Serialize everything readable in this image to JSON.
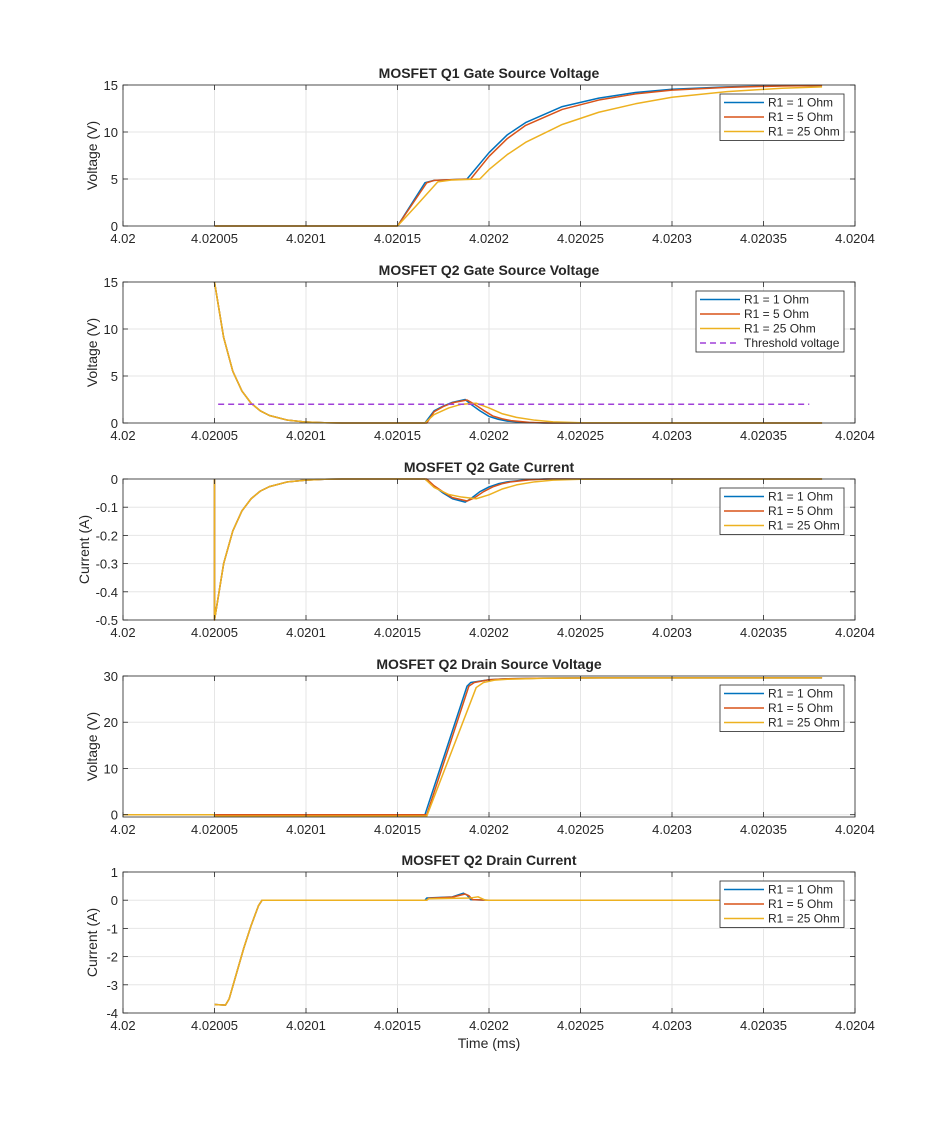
{
  "chart_data": [
    {
      "type": "line",
      "title": "MOSFET Q1 Gate Source Voltage",
      "xlabel": "",
      "ylabel": "Voltage (V)",
      "xlim": [
        4.02,
        4.0204
      ],
      "ylim": [
        0,
        15
      ],
      "xticks": [
        4.02,
        4.02005,
        4.0201,
        4.02015,
        4.0202,
        4.02025,
        4.0203,
        4.02035,
        4.0204
      ],
      "xtick_labels": [
        "4.02",
        "4.02005",
        "4.0201",
        "4.02015",
        "4.0202",
        "4.02025",
        "4.0203",
        "4.02035",
        "4.0204"
      ],
      "yticks": [
        0,
        5,
        10,
        15
      ],
      "ytick_labels": [
        "0",
        "5",
        "10",
        "15"
      ],
      "grid": true,
      "legend": "top-right",
      "series": [
        {
          "name": "R1 = 1 Ohm",
          "color": "#0072BD",
          "dash": "",
          "x": [
            4.02005,
            4.02015,
            4.020165,
            4.02017,
            4.020175,
            4.020188,
            4.0202,
            4.02021,
            4.02022,
            4.02024,
            4.02026,
            4.02028,
            4.0203,
            4.02033,
            4.02036,
            4.020382
          ],
          "y": [
            0,
            0,
            4.6,
            4.85,
            4.9,
            5.0,
            7.8,
            9.7,
            11.0,
            12.7,
            13.6,
            14.2,
            14.55,
            14.8,
            14.92,
            14.95
          ]
        },
        {
          "name": "R1 = 5 Ohm",
          "color": "#D95319",
          "dash": "",
          "x": [
            4.02005,
            4.02015,
            4.020166,
            4.02017,
            4.020175,
            4.02019,
            4.0202,
            4.02021,
            4.02022,
            4.02024,
            4.02026,
            4.02028,
            4.0203,
            4.02033,
            4.02036,
            4.020382
          ],
          "y": [
            0,
            0,
            4.6,
            4.85,
            4.9,
            5.0,
            7.4,
            9.3,
            10.7,
            12.4,
            13.4,
            14.05,
            14.45,
            14.75,
            14.9,
            14.94
          ]
        },
        {
          "name": "R1 = 25 Ohm",
          "color": "#EDB120",
          "dash": "",
          "x": [
            4.02005,
            4.02015,
            4.02016,
            4.020172,
            4.02018,
            4.020195,
            4.0202,
            4.02021,
            4.02022,
            4.02024,
            4.02026,
            4.02028,
            4.0203,
            4.02033,
            4.02036,
            4.020382
          ],
          "y": [
            0,
            0,
            2.1,
            4.7,
            4.9,
            5.0,
            6.0,
            7.6,
            8.9,
            10.8,
            12.1,
            13.0,
            13.7,
            14.3,
            14.65,
            14.8
          ]
        }
      ]
    },
    {
      "type": "line",
      "title": "MOSFET Q2 Gate Source Voltage",
      "xlabel": "",
      "ylabel": "Voltage (V)",
      "xlim": [
        4.02,
        4.0204
      ],
      "ylim": [
        0,
        15
      ],
      "xticks": [
        4.02,
        4.02005,
        4.0201,
        4.02015,
        4.0202,
        4.02025,
        4.0203,
        4.02035,
        4.0204
      ],
      "xtick_labels": [
        "4.02",
        "4.02005",
        "4.0201",
        "4.02015",
        "4.0202",
        "4.02025",
        "4.0203",
        "4.02035",
        "4.0204"
      ],
      "yticks": [
        0,
        5,
        10,
        15
      ],
      "ytick_labels": [
        "0",
        "5",
        "10",
        "15"
      ],
      "grid": true,
      "legend": "top-right",
      "series": [
        {
          "name": "R1 = 1 Ohm",
          "color": "#0072BD",
          "dash": "",
          "x": [
            4.02005,
            4.020055,
            4.02006,
            4.020065,
            4.02007,
            4.020075,
            4.02008,
            4.02009,
            4.0201,
            4.02011,
            4.02012,
            4.020165,
            4.02017,
            4.020175,
            4.02018,
            4.020187,
            4.02019,
            4.020195,
            4.0202,
            4.020205,
            4.02021,
            4.02022,
            4.02023,
            4.020382
          ],
          "y": [
            15,
            9.1,
            5.5,
            3.4,
            2.1,
            1.3,
            0.8,
            0.3,
            0.1,
            0.03,
            0,
            0,
            1.3,
            1.8,
            2.2,
            2.5,
            2.0,
            1.3,
            0.7,
            0.4,
            0.2,
            0.05,
            0,
            0
          ]
        },
        {
          "name": "R1 = 5 Ohm",
          "color": "#D95319",
          "dash": "",
          "x": [
            4.02005,
            4.020055,
            4.02006,
            4.020065,
            4.02007,
            4.020075,
            4.02008,
            4.02009,
            4.0201,
            4.02011,
            4.02012,
            4.020166,
            4.02017,
            4.020175,
            4.02018,
            4.020188,
            4.020192,
            4.020197,
            4.020202,
            4.020207,
            4.020212,
            4.020222,
            4.020232,
            4.020382
          ],
          "y": [
            15,
            9.1,
            5.5,
            3.4,
            2.1,
            1.3,
            0.8,
            0.3,
            0.1,
            0.03,
            0,
            0,
            1.2,
            1.75,
            2.15,
            2.45,
            2.0,
            1.35,
            0.75,
            0.45,
            0.25,
            0.07,
            0,
            0
          ]
        },
        {
          "name": "R1 = 25 Ohm",
          "color": "#EDB120",
          "dash": "",
          "x": [
            4.02005,
            4.020055,
            4.02006,
            4.020065,
            4.02007,
            4.020075,
            4.02008,
            4.02009,
            4.0201,
            4.02011,
            4.02012,
            4.020165,
            4.02017,
            4.020178,
            4.020185,
            4.020193,
            4.0202,
            4.020207,
            4.020215,
            4.020225,
            4.020235,
            4.02025,
            4.020382
          ],
          "y": [
            15,
            9.1,
            5.5,
            3.4,
            2.1,
            1.3,
            0.8,
            0.3,
            0.1,
            0.03,
            0,
            0,
            0.9,
            1.6,
            2.0,
            2.1,
            1.6,
            1.0,
            0.6,
            0.3,
            0.12,
            0.02,
            0
          ]
        },
        {
          "name": "Threshold voltage",
          "color": "#A040D8",
          "dash": "dashed",
          "x": [
            4.020052,
            4.020375
          ],
          "y": [
            2,
            2
          ]
        }
      ]
    },
    {
      "type": "line",
      "title": "MOSFET Q2 Gate Current",
      "xlabel": "",
      "ylabel": "Current (A)",
      "xlim": [
        4.02,
        4.0204
      ],
      "ylim": [
        -0.5,
        0
      ],
      "xticks": [
        4.02,
        4.02005,
        4.0201,
        4.02015,
        4.0202,
        4.02025,
        4.0203,
        4.02035,
        4.0204
      ],
      "xtick_labels": [
        "4.02",
        "4.02005",
        "4.0201",
        "4.02015",
        "4.0202",
        "4.02025",
        "4.0203",
        "4.02035",
        "4.0204"
      ],
      "yticks": [
        0,
        -0.1,
        -0.2,
        -0.3,
        -0.4,
        -0.5
      ],
      "ytick_labels": [
        "0",
        "-0.1",
        "-0.2",
        "-0.3",
        "-0.4",
        "-0.5"
      ],
      "grid": true,
      "legend": "top-right",
      "series": [
        {
          "name": "R1 = 1 Ohm",
          "color": "#0072BD",
          "dash": "",
          "x": [
            4.02005,
            4.02005,
            4.020055,
            4.02006,
            4.020065,
            4.02007,
            4.020075,
            4.02008,
            4.02009,
            4.0201,
            4.02011,
            4.02012,
            4.020165,
            4.02017,
            4.020175,
            4.02018,
            4.020187,
            4.02019,
            4.020195,
            4.0202,
            4.020205,
            4.02021,
            4.02022,
            4.02023,
            4.020382
          ],
          "y": [
            0,
            -0.5,
            -0.3,
            -0.184,
            -0.113,
            -0.07,
            -0.043,
            -0.027,
            -0.01,
            -0.004,
            -0.001,
            0,
            0,
            -0.026,
            -0.05,
            -0.07,
            -0.082,
            -0.07,
            -0.045,
            -0.028,
            -0.017,
            -0.01,
            -0.003,
            0,
            0
          ]
        },
        {
          "name": "R1 = 5 Ohm",
          "color": "#D95319",
          "dash": "",
          "x": [
            4.02005,
            4.02005,
            4.020055,
            4.02006,
            4.020065,
            4.02007,
            4.020075,
            4.02008,
            4.02009,
            4.0201,
            4.02011,
            4.02012,
            4.020166,
            4.02017,
            4.020175,
            4.02018,
            4.020188,
            4.020192,
            4.020197,
            4.020202,
            4.020207,
            4.020212,
            4.020222,
            4.020232,
            4.020382
          ],
          "y": [
            0,
            -0.5,
            -0.3,
            -0.184,
            -0.113,
            -0.07,
            -0.043,
            -0.027,
            -0.01,
            -0.004,
            -0.001,
            0,
            0,
            -0.024,
            -0.046,
            -0.066,
            -0.078,
            -0.067,
            -0.045,
            -0.028,
            -0.017,
            -0.01,
            -0.003,
            0,
            0
          ]
        },
        {
          "name": "R1 = 25 Ohm",
          "color": "#EDB120",
          "dash": "",
          "x": [
            4.02005,
            4.02005,
            4.020055,
            4.02006,
            4.020065,
            4.02007,
            4.020075,
            4.02008,
            4.02009,
            4.0201,
            4.02011,
            4.02012,
            4.020165,
            4.02017,
            4.020178,
            4.020185,
            4.020193,
            4.0202,
            4.020207,
            4.020215,
            4.020225,
            4.020235,
            4.02025,
            4.020382
          ],
          "y": [
            0,
            -0.5,
            -0.3,
            -0.184,
            -0.113,
            -0.07,
            -0.043,
            -0.027,
            -0.01,
            -0.004,
            -0.001,
            0,
            0,
            -0.03,
            -0.055,
            -0.064,
            -0.07,
            -0.056,
            -0.036,
            -0.021,
            -0.01,
            -0.004,
            -0.001,
            0
          ]
        }
      ]
    },
    {
      "type": "line",
      "title": "MOSFET Q2 Drain Source Voltage",
      "xlabel": "",
      "ylabel": "Voltage (V)",
      "xlim": [
        4.02,
        4.0204
      ],
      "ylim": [
        -0.5,
        30
      ],
      "xticks": [
        4.02,
        4.02005,
        4.0201,
        4.02015,
        4.0202,
        4.02025,
        4.0203,
        4.02035,
        4.0204
      ],
      "xtick_labels": [
        "4.02",
        "4.02005",
        "4.0201",
        "4.02015",
        "4.0202",
        "4.02025",
        "4.0203",
        "4.02035",
        "4.0204"
      ],
      "yticks": [
        0,
        10,
        20,
        30
      ],
      "ytick_labels": [
        "0",
        "10",
        "20",
        "30"
      ],
      "grid": true,
      "legend": "top-right",
      "series": [
        {
          "name": "R1 = 1 Ohm",
          "color": "#0072BD",
          "dash": "",
          "x": [
            4.02,
            4.02005,
            4.020165,
            4.020188,
            4.02019,
            4.0202,
            4.02021,
            4.02023,
            4.02026,
            4.020382
          ],
          "y": [
            0,
            0,
            0,
            27.8,
            28.6,
            29.2,
            29.4,
            29.55,
            29.6,
            29.6
          ]
        },
        {
          "name": "R1 = 5 Ohm",
          "color": "#D95319",
          "dash": "",
          "x": [
            4.02,
            4.02005,
            4.020166,
            4.020189,
            4.020192,
            4.0202,
            4.02021,
            4.02023,
            4.02026,
            4.020382
          ],
          "y": [
            0,
            0,
            0,
            27.8,
            28.6,
            29.2,
            29.4,
            29.55,
            29.6,
            29.6
          ]
        },
        {
          "name": "R1 = 25 Ohm",
          "color": "#EDB120",
          "dash": "",
          "x": [
            4.02,
            4.02005,
            4.02005,
            4.020166,
            4.020193,
            4.020197,
            4.020203,
            4.02021,
            4.02023,
            4.02026,
            4.020382
          ],
          "y": [
            0,
            0,
            -0.3,
            -0.3,
            27.5,
            28.6,
            29.1,
            29.3,
            29.5,
            29.6,
            29.6
          ]
        }
      ]
    },
    {
      "type": "line",
      "title": "MOSFET Q2 Drain Current",
      "xlabel": "Time (ms)",
      "ylabel": "Current (A)",
      "xlim": [
        4.02,
        4.0204
      ],
      "ylim": [
        -4,
        1
      ],
      "xticks": [
        4.02,
        4.02005,
        4.0201,
        4.02015,
        4.0202,
        4.02025,
        4.0203,
        4.02035,
        4.0204
      ],
      "xtick_labels": [
        "4.02",
        "4.02005",
        "4.0201",
        "4.02015",
        "4.0202",
        "4.02025",
        "4.0203",
        "4.02035",
        "4.0204"
      ],
      "yticks": [
        1,
        0,
        -1,
        -2,
        -3,
        -4
      ],
      "ytick_labels": [
        "1",
        "0",
        "-1",
        "-2",
        "-3",
        "-4"
      ],
      "grid": true,
      "legend": "top-right",
      "series": [
        {
          "name": "R1 = 1 Ohm",
          "color": "#0072BD",
          "dash": "",
          "x": [
            4.02005,
            4.020056,
            4.020058,
            4.020062,
            4.020066,
            4.02007,
            4.020074,
            4.020076,
            4.02008,
            4.020165,
            4.020166,
            4.02018,
            4.020186,
            4.020188,
            4.02019,
            4.0202,
            4.020382
          ],
          "y": [
            -3.7,
            -3.72,
            -3.5,
            -2.6,
            -1.7,
            -0.9,
            -0.2,
            0,
            0,
            0,
            0.08,
            0.12,
            0.25,
            0.18,
            0.02,
            0,
            0
          ]
        },
        {
          "name": "R1 = 5 Ohm",
          "color": "#D95319",
          "dash": "",
          "x": [
            4.02005,
            4.020056,
            4.020058,
            4.020062,
            4.020066,
            4.02007,
            4.020074,
            4.020076,
            4.02008,
            4.020166,
            4.020167,
            4.02018,
            4.020187,
            4.020189,
            4.020191,
            4.0202,
            4.020382
          ],
          "y": [
            -3.7,
            -3.72,
            -3.5,
            -2.6,
            -1.7,
            -0.9,
            -0.2,
            0,
            0,
            0,
            0.07,
            0.11,
            0.22,
            0.16,
            0.02,
            0,
            0
          ]
        },
        {
          "name": "R1 = 25 Ohm",
          "color": "#EDB120",
          "dash": "",
          "x": [
            4.02005,
            4.020056,
            4.020058,
            4.020062,
            4.020066,
            4.02007,
            4.020074,
            4.020076,
            4.02008,
            4.020166,
            4.020167,
            4.02019,
            4.020194,
            4.020198,
            4.020382
          ],
          "y": [
            -3.7,
            -3.72,
            -3.5,
            -2.6,
            -1.7,
            -0.9,
            -0.2,
            0,
            0,
            0,
            0.05,
            0.08,
            0.12,
            0,
            0
          ]
        }
      ]
    }
  ]
}
